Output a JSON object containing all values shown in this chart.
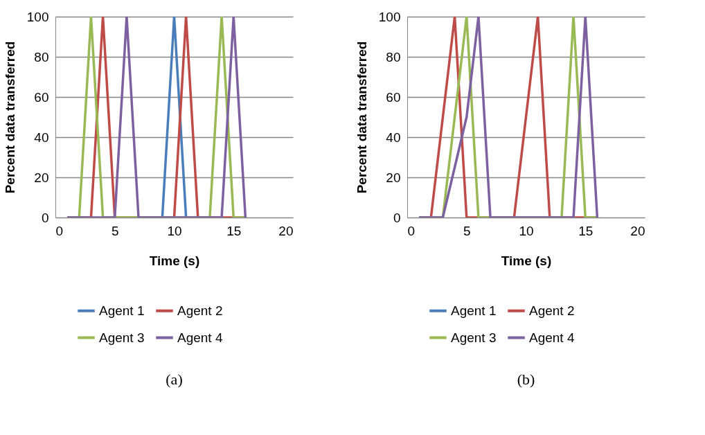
{
  "chart_data": [
    {
      "type": "line",
      "xlabel": "Time (s)",
      "ylabel": "Percent data transferred",
      "x": [
        1,
        2,
        3,
        4,
        5,
        6,
        7,
        8,
        9,
        10,
        11,
        12,
        13,
        14,
        15,
        16
      ],
      "xlim": [
        0,
        20
      ],
      "xticks": [
        0,
        5,
        10,
        15,
        20
      ],
      "ylim": [
        0,
        100
      ],
      "yticks": [
        0,
        20,
        40,
        60,
        80,
        100
      ],
      "grid": "y",
      "legend": "bottom",
      "marker": "none",
      "line_style": "solid",
      "annotations": [
        "(a)"
      ],
      "series": [
        {
          "name": "Agent 1",
          "color": "#4a7ebb",
          "values": [
            null,
            null,
            null,
            null,
            null,
            null,
            null,
            null,
            0,
            100,
            0,
            null,
            null,
            null,
            null,
            null
          ]
        },
        {
          "name": "Agent 2",
          "color": "#be4b48",
          "values": [
            0,
            0,
            0,
            100,
            0,
            0,
            0,
            0,
            0,
            0,
            100,
            0,
            0,
            0,
            0,
            0
          ]
        },
        {
          "name": "Agent 3",
          "color": "#98b954",
          "values": [
            0,
            0,
            100,
            0,
            0,
            0,
            0,
            0,
            0,
            0,
            0,
            0,
            0,
            100,
            0,
            0
          ]
        },
        {
          "name": "Agent 4",
          "color": "#7d60a0",
          "values": [
            0,
            0,
            0,
            0,
            0,
            100,
            0,
            0,
            0,
            0,
            0,
            0,
            0,
            0,
            100,
            0
          ]
        }
      ]
    },
    {
      "type": "line",
      "xlabel": "Time (s)",
      "ylabel": "Percent data transferred",
      "x": [
        1,
        2,
        3,
        4,
        5,
        6,
        7,
        8,
        9,
        10,
        11,
        12,
        13,
        14,
        15,
        16
      ],
      "xlim": [
        0,
        20
      ],
      "xticks": [
        0,
        5,
        10,
        15,
        20
      ],
      "ylim": [
        0,
        100
      ],
      "yticks": [
        0,
        20,
        40,
        60,
        80,
        100
      ],
      "grid": "y",
      "legend": "bottom",
      "marker": "none",
      "line_style": "solid",
      "annotations": [
        "(b)"
      ],
      "series": [
        {
          "name": "Agent 1",
          "color": "#4a7ebb",
          "values": [
            null,
            null,
            null,
            null,
            null,
            null,
            null,
            null,
            null,
            null,
            null,
            null,
            null,
            null,
            null,
            null
          ]
        },
        {
          "name": "Agent 2",
          "color": "#be4b48",
          "values": [
            0,
            0,
            50,
            100,
            0,
            0,
            0,
            0,
            0,
            50,
            100,
            0,
            0,
            0,
            0,
            0
          ]
        },
        {
          "name": "Agent 3",
          "color": "#98b954",
          "values": [
            0,
            0,
            0,
            50,
            100,
            0,
            0,
            0,
            0,
            0,
            0,
            0,
            0,
            100,
            0,
            0
          ]
        },
        {
          "name": "Agent 4",
          "color": "#7d60a0",
          "values": [
            0,
            0,
            0,
            25,
            50,
            100,
            0,
            0,
            0,
            0,
            0,
            0,
            0,
            0,
            100,
            0
          ]
        }
      ]
    }
  ]
}
